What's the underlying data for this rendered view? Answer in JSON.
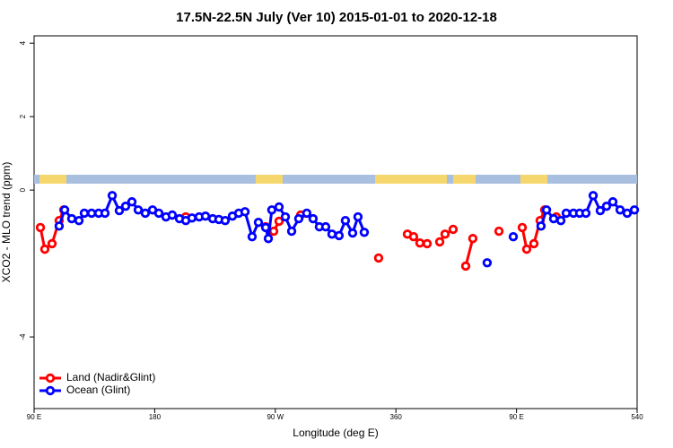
{
  "chart_data": {
    "type": "line",
    "title": "17.5N-22.5N July (Ver 10)   2015-01-01 to 2020-12-18",
    "x_label": "Longitude (deg E)",
    "y_label": "XCO2 - MLO trend (ppm)",
    "xlim": [
      90,
      540
    ],
    "ylim": [
      -5.95,
      4.2
    ],
    "xticks": [
      {
        "value": 90,
        "label": "90 E"
      },
      180,
      {
        "value": 270,
        "label": "90 W"
      },
      360,
      {
        "value": 450,
        "label": "90 E"
      },
      540
    ],
    "yticks": [
      4,
      2,
      0,
      -4
    ],
    "legend": "bottom-left",
    "series": [
      {
        "name": "Land (Nadir&Glint)",
        "color": "#ff0000",
        "x": [
          94.7,
          98.0,
          103.4,
          108.7,
          112.1,
          null,
          203.2,
          null,
          262.8,
          268.8,
          272.8,
          null,
          288.9,
          null,
          347.1,
          null,
          368.6,
          373.2,
          377.9,
          383.3,
          null,
          392.7,
          396.7,
          402.7,
          null,
          412.1,
          417.4,
          null,
          436.9,
          null,
          454.3,
          457.6,
          463.0,
          467.6,
          471.0,
          null,
          479.7
        ],
        "values": [
          -1.02,
          -1.61,
          -1.46,
          -0.83,
          -0.54,
          null,
          -0.73,
          null,
          -1.0,
          -1.12,
          -0.85,
          null,
          -0.68,
          null,
          -1.85,
          null,
          -1.2,
          -1.27,
          -1.44,
          -1.46,
          null,
          -1.41,
          -1.2,
          -1.07,
          null,
          -2.07,
          -1.32,
          null,
          -1.12,
          null,
          -1.02,
          -1.61,
          -1.46,
          -0.83,
          -0.54,
          null,
          -0.73
        ]
      },
      {
        "name": "Ocean (Glint)",
        "color": "#0000ff",
        "x": [
          108.7,
          112.8,
          118.1,
          123.5,
          127.5,
          132.9,
          138.2,
          142.9,
          148.3,
          153.6,
          158.3,
          163.0,
          167.7,
          173.0,
          178.4,
          183.1,
          188.4,
          193.1,
          198.5,
          203.2,
          207.8,
          213.2,
          217.9,
          223.3,
          227.9,
          232.6,
          238.0,
          242.7,
          247.4,
          252.7,
          257.4,
          262.8,
          264.8,
          267.4,
          272.8,
          277.5,
          282.2,
          287.5,
          293.5,
          298.2,
          302.9,
          307.6,
          312.3,
          317.6,
          322.3,
          327.7,
          331.7,
          336.4,
          null,
          428.1,
          null,
          447.6,
          null,
          468.3,
          472.4,
          477.7,
          483.1,
          487.1,
          492.5,
          497.1,
          501.8,
          507.2,
          512.5,
          517.2,
          521.9,
          527.3,
          532.6,
          538.0
        ],
        "values": [
          -0.98,
          -0.54,
          -0.78,
          -0.83,
          -0.63,
          -0.63,
          -0.63,
          -0.63,
          -0.15,
          -0.56,
          -0.44,
          -0.32,
          -0.54,
          -0.63,
          -0.54,
          -0.63,
          -0.73,
          -0.68,
          -0.78,
          -0.83,
          -0.76,
          -0.73,
          -0.71,
          -0.78,
          -0.8,
          -0.83,
          -0.71,
          -0.63,
          -0.59,
          -1.27,
          -0.88,
          -1.02,
          -1.32,
          -0.54,
          -0.46,
          -0.73,
          -1.12,
          -0.78,
          -0.63,
          -0.78,
          -1.0,
          -1.0,
          -1.2,
          -1.24,
          -0.83,
          -1.17,
          -0.73,
          -1.15,
          null,
          -1.98,
          null,
          -1.27,
          null,
          -0.98,
          -0.54,
          -0.78,
          -0.83,
          -0.63,
          -0.63,
          -0.63,
          -0.63,
          -0.15,
          -0.56,
          -0.44,
          -0.32,
          -0.54,
          -0.63,
          -0.54
        ]
      }
    ]
  }
}
